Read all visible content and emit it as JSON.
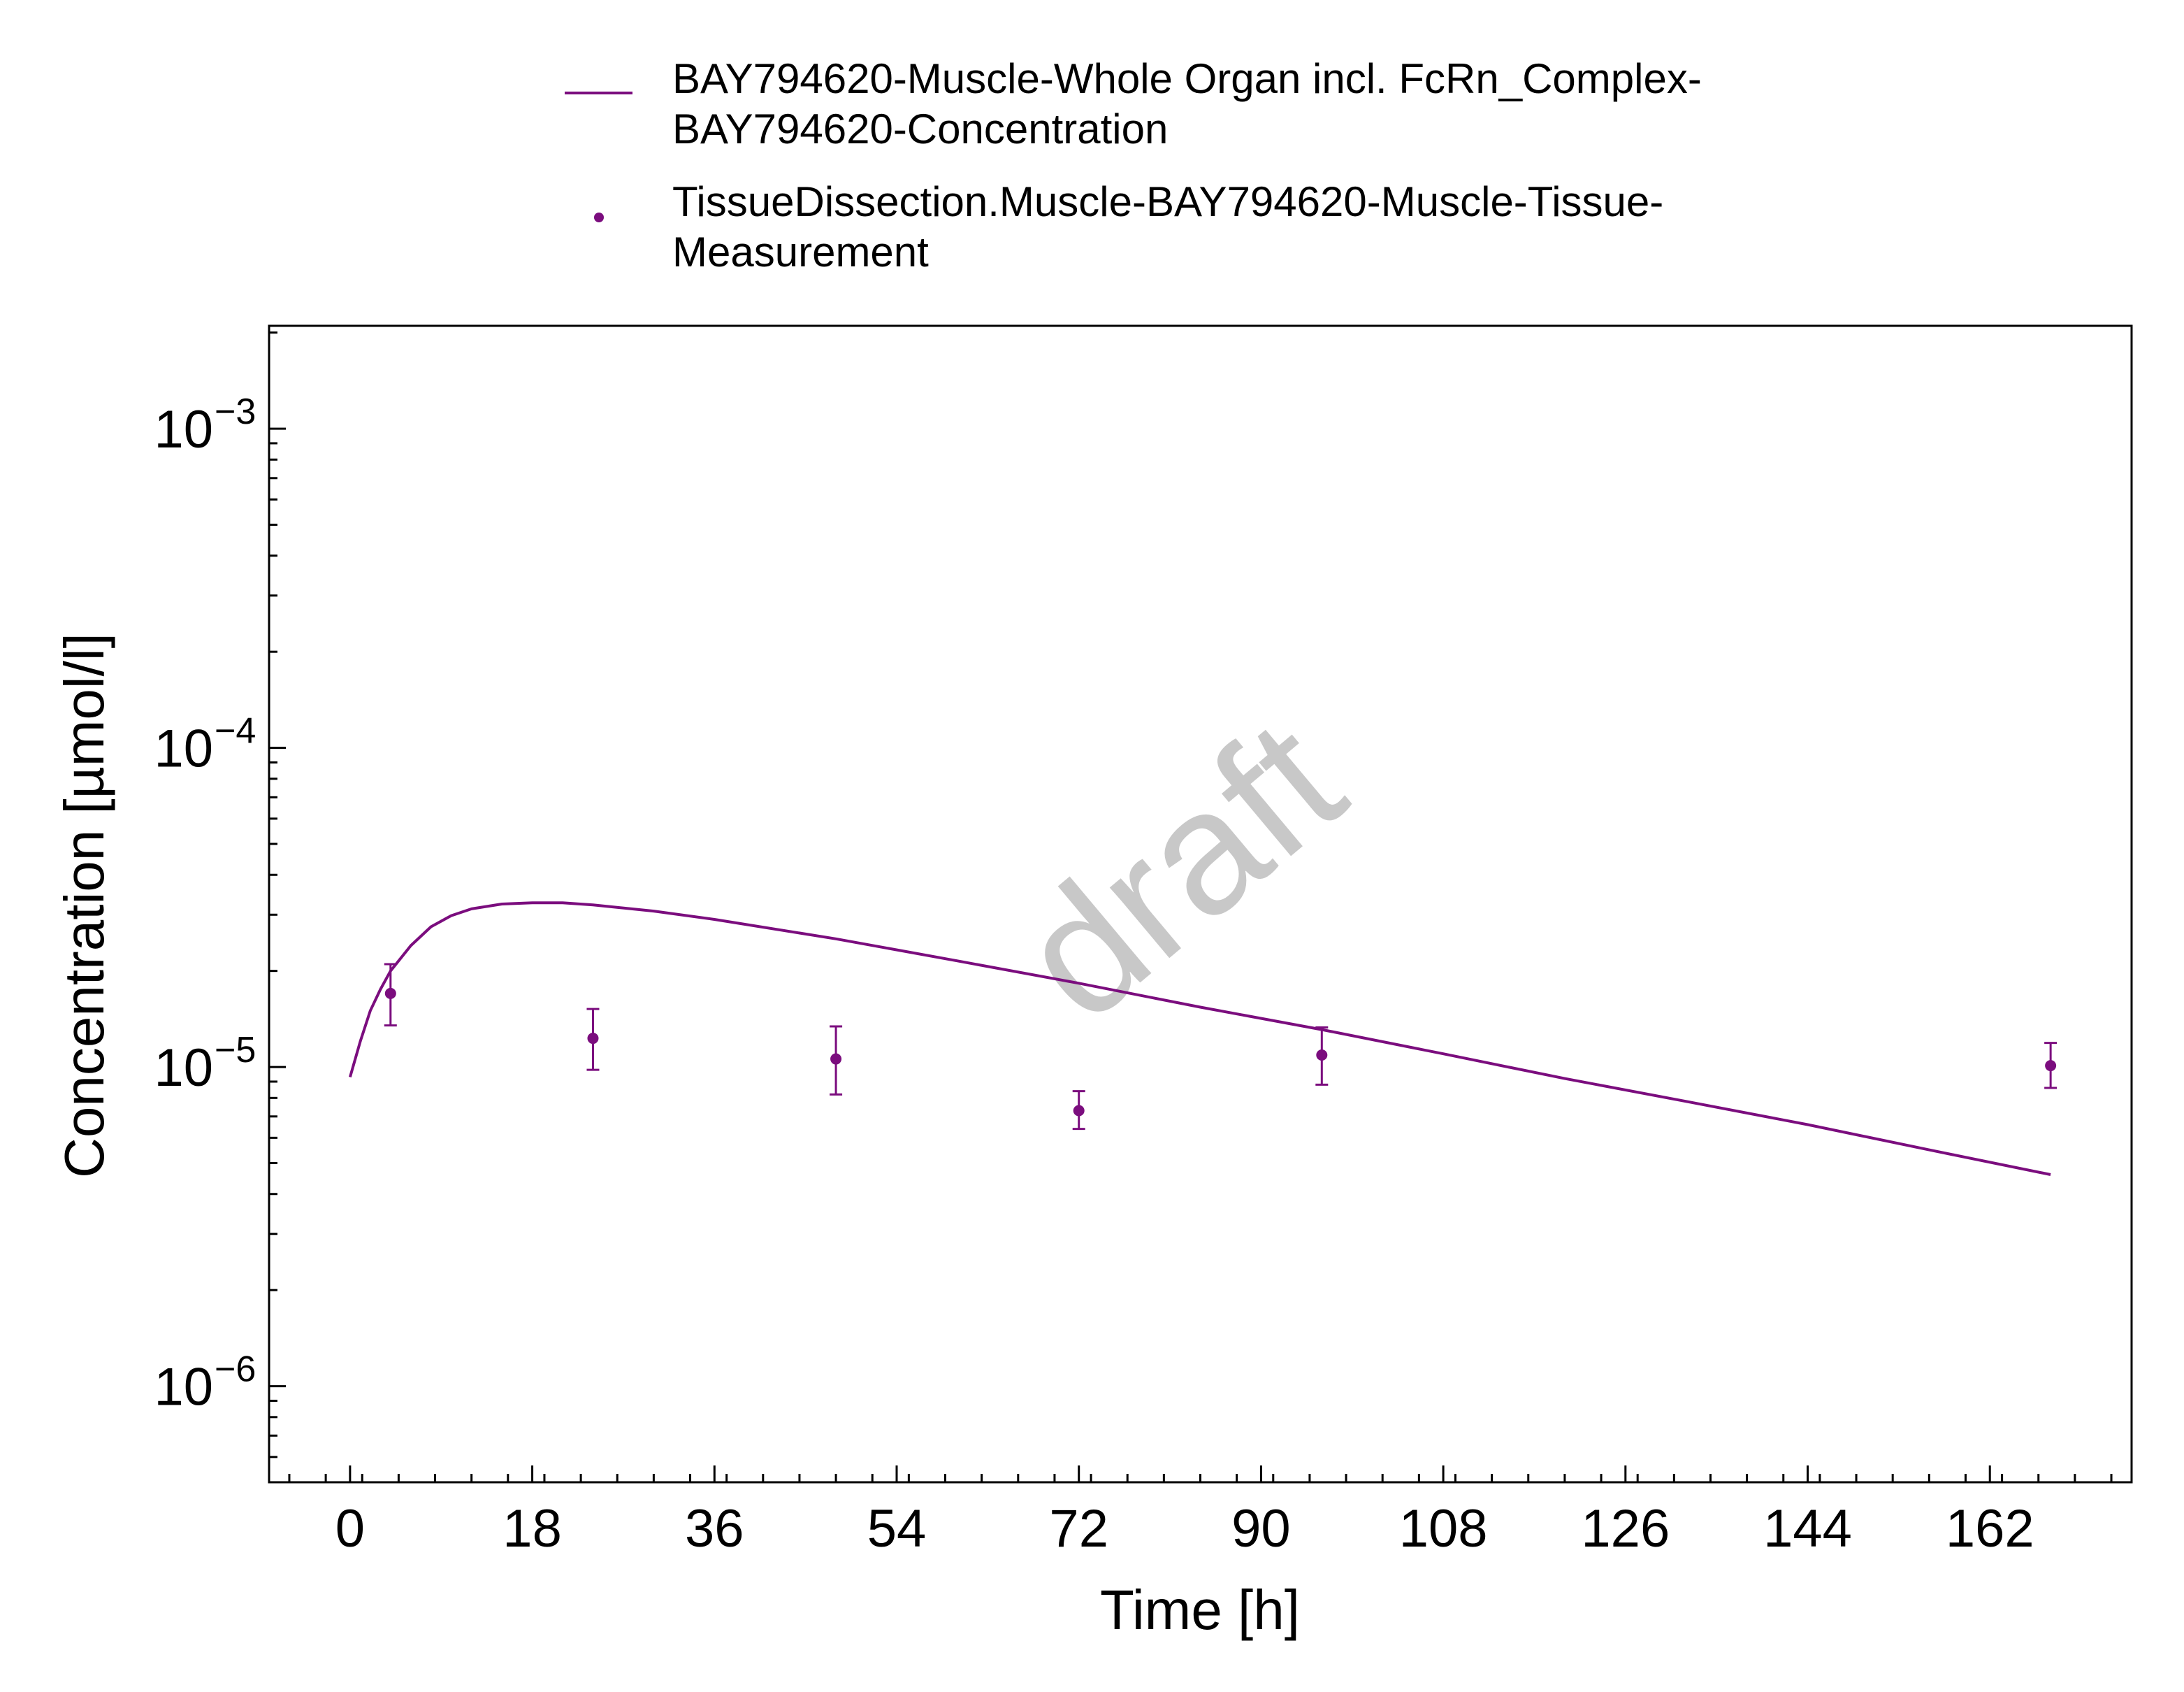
{
  "legend": {
    "line_label_1": "BAY794620-Muscle-Whole Organ incl. FcRn_Complex-",
    "line_label_2": "BAY794620-Concentration",
    "points_label_1": "TissueDissection.Muscle-BAY794620-Muscle-Tissue-",
    "points_label_2": "Measurement"
  },
  "watermark": "draft",
  "colors": {
    "series": "#7b0d7e",
    "axis": "#000000",
    "watermark": "#c8c8c8"
  },
  "chart_data": {
    "type": "line",
    "xlabel": "Time [h]",
    "ylabel": "Concentration [µmol/l]",
    "y_scale": "log",
    "xlim": [
      -8,
      176
    ],
    "ylim": [
      5e-07,
      0.0021
    ],
    "x_ticks": [
      0,
      18,
      36,
      54,
      72,
      90,
      108,
      126,
      144,
      162
    ],
    "y_ticks": [
      {
        "value": 0.001,
        "base": "10",
        "exp": "−3"
      },
      {
        "value": 0.0001,
        "base": "10",
        "exp": "−4"
      },
      {
        "value": 1e-05,
        "base": "10",
        "exp": "−5"
      },
      {
        "value": 1e-06,
        "base": "10",
        "exp": "−6"
      }
    ],
    "grid": false,
    "legend_position": "top",
    "series": [
      {
        "kind": "line",
        "x": [
          0,
          1,
          2,
          3,
          4,
          6,
          8,
          10,
          12,
          15,
          18,
          21,
          24,
          30,
          36,
          48,
          60,
          72,
          84,
          96,
          108,
          120,
          132,
          144,
          156,
          168
        ],
        "y": [
          9.3e-06,
          1.2e-05,
          1.5e-05,
          1.75e-05,
          2e-05,
          2.4e-05,
          2.75e-05,
          2.98e-05,
          3.13e-05,
          3.24e-05,
          3.27e-05,
          3.27e-05,
          3.22e-05,
          3.08e-05,
          2.9e-05,
          2.52e-05,
          2.15e-05,
          1.83e-05,
          1.54e-05,
          1.31e-05,
          1.1e-05,
          9.2e-06,
          7.8e-06,
          6.6e-06,
          5.5e-06,
          4.6e-06
        ]
      },
      {
        "kind": "scatter",
        "x": [
          4,
          24,
          48,
          72,
          96,
          168
        ],
        "y": [
          1.7e-05,
          1.23e-05,
          1.06e-05,
          7.3e-06,
          1.09e-05,
          1.01e-05
        ],
        "y_err_low": [
          1.35e-05,
          9.8e-06,
          8.2e-06,
          6.4e-06,
          8.8e-06,
          8.6e-06
        ],
        "y_err_high": [
          2.1e-05,
          1.52e-05,
          1.34e-05,
          8.4e-06,
          1.33e-05,
          1.19e-05
        ]
      }
    ]
  }
}
